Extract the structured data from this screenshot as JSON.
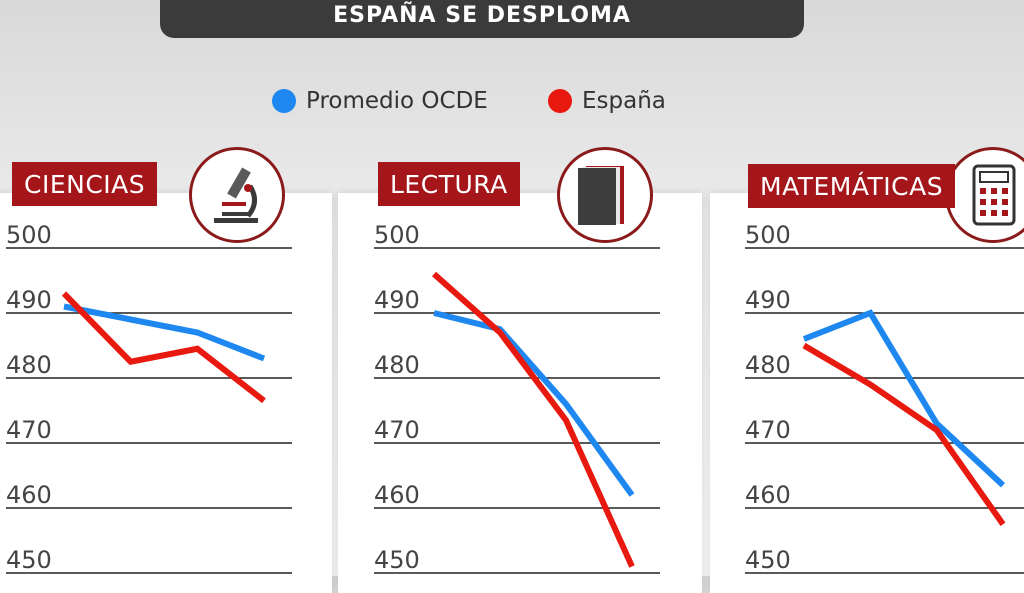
{
  "header": {
    "title": "ESPAÑA SE DESPLOMA"
  },
  "legend": {
    "items": [
      {
        "label": "Promedio OCDE",
        "color": "#1e88f0"
      },
      {
        "label": "España",
        "color": "#e8190f"
      }
    ]
  },
  "chart_data": [
    {
      "type": "line",
      "title": "CIENCIAS",
      "icon": "microscope-icon",
      "x": [
        0,
        1,
        2,
        3
      ],
      "ylim": [
        450,
        500
      ],
      "yticks": [
        "500",
        "490",
        "480",
        "470",
        "460",
        "450"
      ],
      "grid": true,
      "series": [
        {
          "name": "Promedio OCDE",
          "color": "#1e88f0",
          "values": [
            491,
            489,
            487,
            483
          ]
        },
        {
          "name": "España",
          "color": "#e8190f",
          "values": [
            493,
            482.5,
            484.5,
            476.5
          ]
        }
      ]
    },
    {
      "type": "line",
      "title": "LECTURA",
      "icon": "book-icon",
      "x": [
        0,
        1,
        2,
        3
      ],
      "ylim": [
        450,
        500
      ],
      "yticks": [
        "500",
        "490",
        "480",
        "470",
        "460",
        "450"
      ],
      "grid": true,
      "series": [
        {
          "name": "Promedio OCDE",
          "color": "#1e88f0",
          "values": [
            490,
            487.5,
            476,
            462
          ]
        },
        {
          "name": "España",
          "color": "#e8190f",
          "values": [
            496,
            487,
            473.5,
            451
          ]
        }
      ]
    },
    {
      "type": "line",
      "title": "MATEMÁTICAS",
      "icon": "calculator-icon",
      "x": [
        0,
        1,
        2,
        3
      ],
      "ylim": [
        450,
        500
      ],
      "yticks": [
        "500",
        "490",
        "480",
        "470",
        "460",
        "450"
      ],
      "grid": true,
      "series": [
        {
          "name": "Promedio OCDE",
          "color": "#1e88f0",
          "values": [
            486,
            490,
            473,
            463.5
          ]
        },
        {
          "name": "España",
          "color": "#e8190f",
          "values": [
            485,
            479,
            472,
            457.5
          ]
        }
      ]
    }
  ]
}
